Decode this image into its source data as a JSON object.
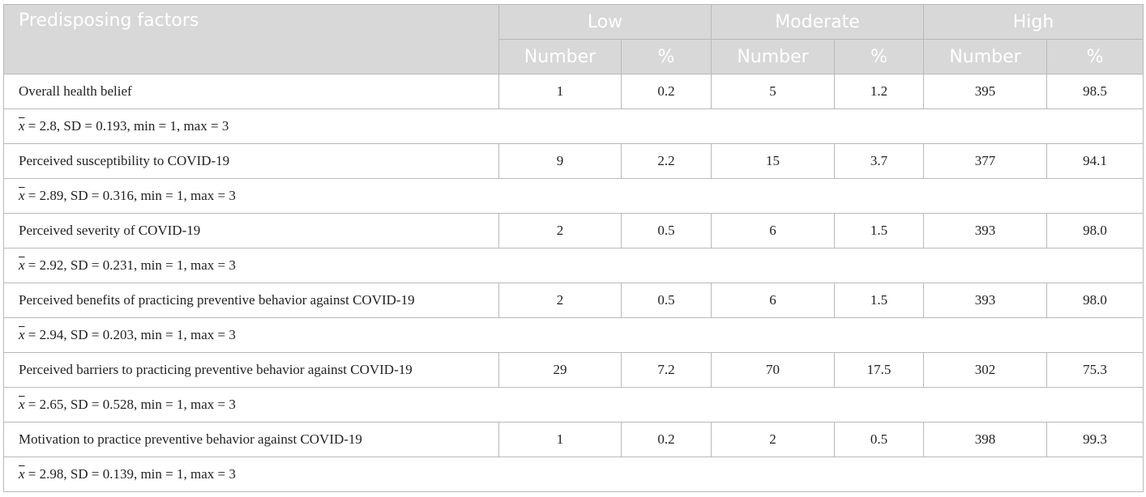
{
  "table": {
    "header": {
      "factor_label": "Predisposing factors",
      "groups": [
        "Low",
        "Moderate",
        "High"
      ],
      "subheaders": [
        "Number",
        "%",
        "Number",
        "%",
        "Number",
        "%"
      ]
    },
    "rows": [
      {
        "label": "Overall health belief",
        "values": [
          "1",
          "0.2",
          "5",
          "1.2",
          "395",
          "98.5"
        ],
        "stat": {
          "symbol": "x",
          "text": " = 2.8, SD = 0.193, min = 1, max = 3"
        }
      },
      {
        "label": "Perceived susceptibility to COVID-19",
        "values": [
          "9",
          "2.2",
          "15",
          "3.7",
          "377",
          "94.1"
        ],
        "stat": {
          "symbol": "x",
          "text": " = 2.89, SD = 0.316, min = 1, max = 3"
        }
      },
      {
        "label": "Perceived severity of COVID-19",
        "values": [
          "2",
          "0.5",
          "6",
          "1.5",
          "393",
          "98.0"
        ],
        "stat": {
          "symbol": "x",
          "text": " = 2.92, SD = 0.231, min = 1, max = 3"
        }
      },
      {
        "label": "Perceived benefits of practicing preventive behavior against COVID-19",
        "values": [
          "2",
          "0.5",
          "6",
          "1.5",
          "393",
          "98.0"
        ],
        "stat": {
          "symbol": "x",
          "text": " = 2.94, SD = 0.203, min = 1, max = 3"
        }
      },
      {
        "label": "Perceived barriers to practicing preventive behavior against COVID-19",
        "values": [
          "29",
          "7.2",
          "70",
          "17.5",
          "302",
          "75.3"
        ],
        "stat": {
          "symbol": "x",
          "text": " = 2.65, SD = 0.528, min = 1, max = 3"
        }
      },
      {
        "label": "Motivation to practice preventive behavior against COVID-19",
        "values": [
          "1",
          "0.2",
          "2",
          "0.5",
          "398",
          "99.3"
        ],
        "stat": {
          "symbol": "x",
          "text": " = 2.98, SD = 0.139, min = 1, max = 3"
        }
      }
    ]
  }
}
